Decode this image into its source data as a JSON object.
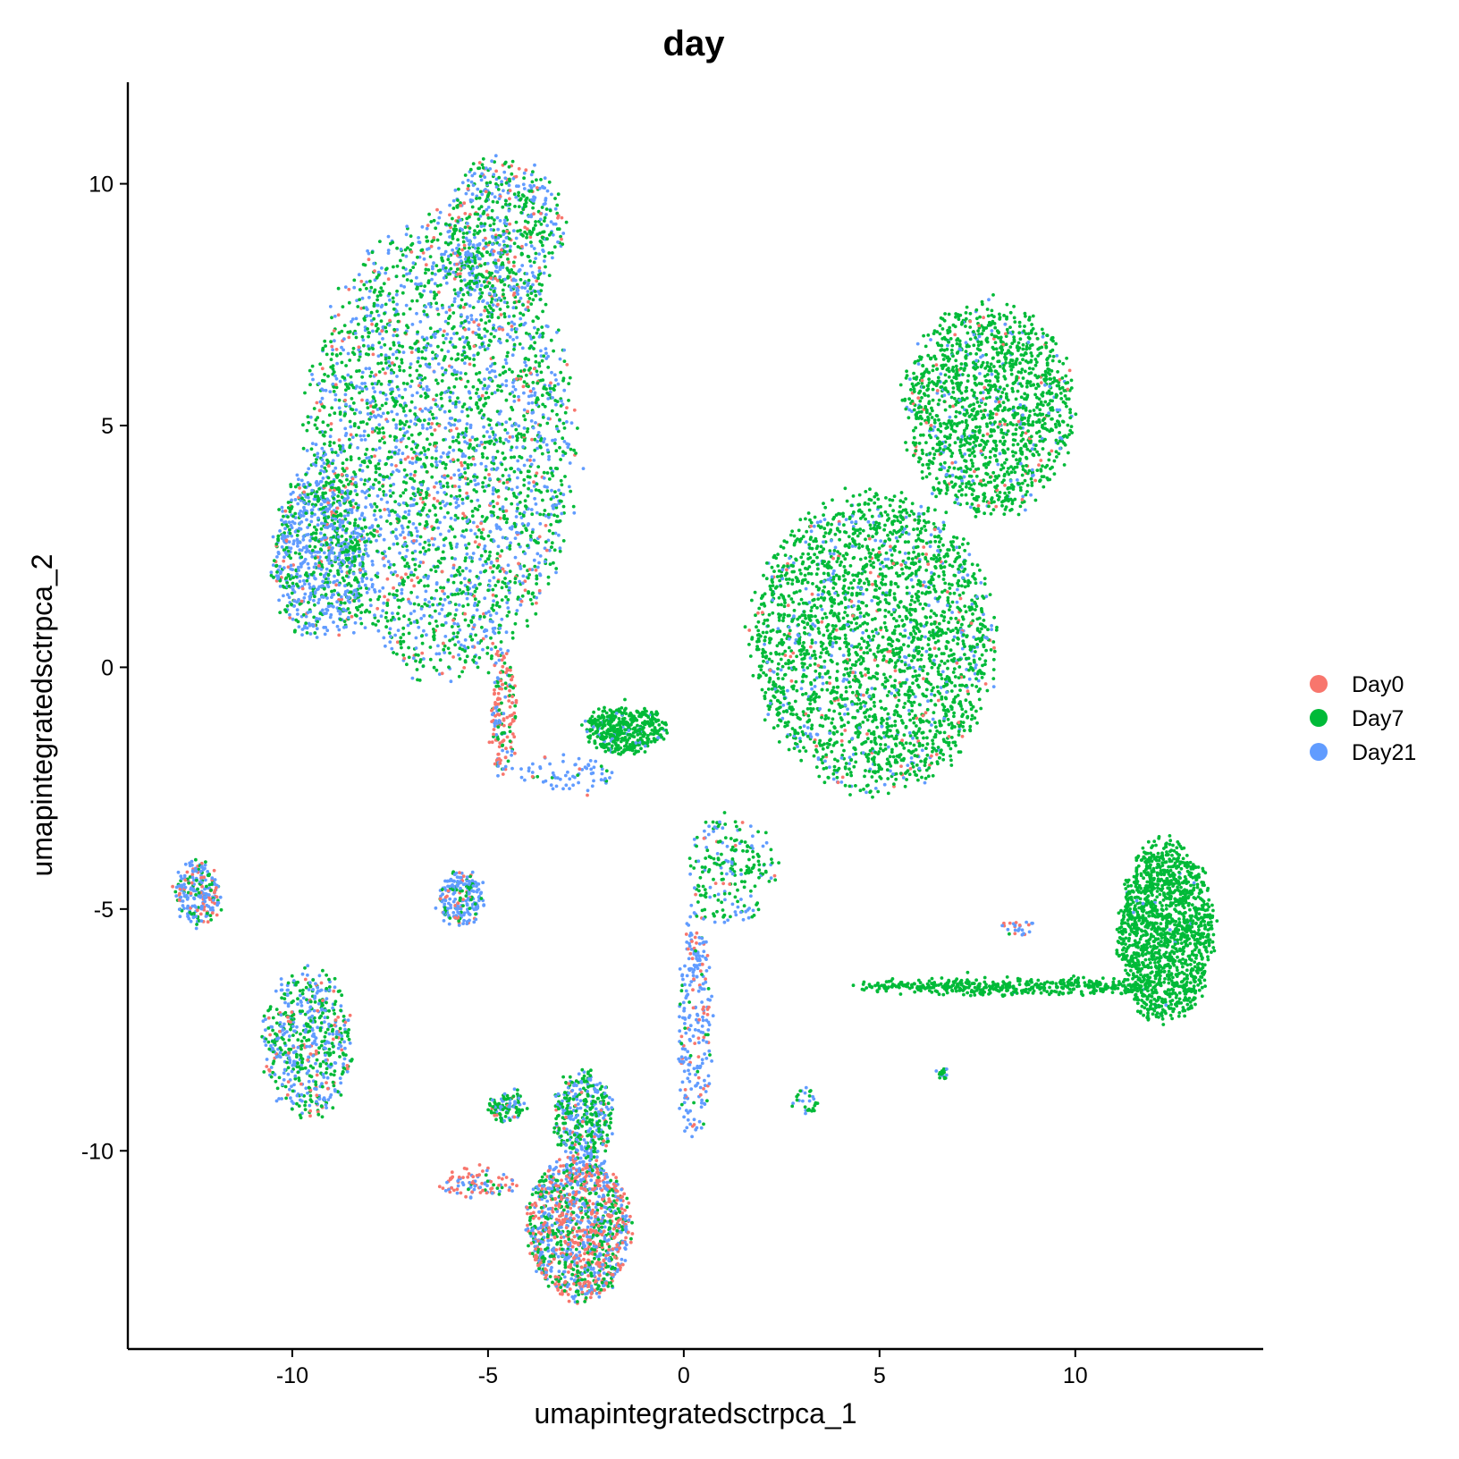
{
  "chart_data": {
    "type": "scatter",
    "title": "day",
    "xlabel": "umapintegratedsctrpca_1",
    "ylabel": "umapintegratedsctrpca_2",
    "xlim": [
      -14.2,
      14.8
    ],
    "ylim": [
      -14.1,
      12.1
    ],
    "xticks": [
      -10,
      -5,
      0,
      5,
      10
    ],
    "yticks": [
      -10,
      -5,
      0,
      5,
      10
    ],
    "xtick_labels": [
      "-10",
      "-5",
      "0",
      "5",
      "10"
    ],
    "ytick_labels": [
      "-10",
      "-5",
      "0",
      "5",
      "10"
    ],
    "grid": false,
    "legend_position": "right",
    "series": [
      {
        "name": "Day0",
        "color": "#F8766D"
      },
      {
        "name": "Day7",
        "color": "#00BA38"
      },
      {
        "name": "Day21",
        "color": "#619CFF"
      }
    ],
    "clusters": [
      {
        "region": "upper-left large cluster",
        "cx": -6.2,
        "cy": 4.5,
        "rx": 3.6,
        "ry": 5.0,
        "n": 3200,
        "mix": [
          0.07,
          0.55,
          0.38
        ]
      },
      {
        "region": "upper-left top lobe",
        "cx": -4.6,
        "cy": 9.0,
        "rx": 1.6,
        "ry": 1.6,
        "n": 600,
        "mix": [
          0.12,
          0.5,
          0.38
        ]
      },
      {
        "region": "upper-left left edge",
        "cx": -9.3,
        "cy": 2.3,
        "rx": 1.3,
        "ry": 1.9,
        "n": 800,
        "mix": [
          0.06,
          0.35,
          0.59
        ]
      },
      {
        "region": "right-middle large cluster",
        "cx": 4.8,
        "cy": 0.5,
        "rx": 3.3,
        "ry": 3.3,
        "n": 2600,
        "mix": [
          0.04,
          0.84,
          0.12
        ]
      },
      {
        "region": "right-upper cluster",
        "cx": 7.8,
        "cy": 5.3,
        "rx": 2.3,
        "ry": 2.3,
        "n": 1500,
        "mix": [
          0.03,
          0.88,
          0.09
        ]
      },
      {
        "region": "far-right cluster",
        "cx": 12.3,
        "cy": -5.5,
        "rx": 1.3,
        "ry": 2.0,
        "n": 1500,
        "mix": [
          0.0,
          0.99,
          0.01
        ]
      },
      {
        "region": "right horizontal streak",
        "cx": 8.3,
        "cy": -6.6,
        "rx": 4.2,
        "ry": 0.14,
        "n": 450,
        "mix": [
          0.0,
          0.99,
          0.01
        ]
      },
      {
        "region": "bottom-center cluster",
        "cx": -2.7,
        "cy": -11.6,
        "rx": 1.4,
        "ry": 1.6,
        "n": 1300,
        "mix": [
          0.36,
          0.3,
          0.34
        ]
      },
      {
        "region": "bottom-center upper lobe",
        "cx": -2.6,
        "cy": -9.3,
        "rx": 0.8,
        "ry": 1.0,
        "n": 400,
        "mix": [
          0.05,
          0.55,
          0.4
        ]
      },
      {
        "region": "left-lower cluster",
        "cx": -9.6,
        "cy": -7.8,
        "rx": 1.2,
        "ry": 1.6,
        "n": 600,
        "mix": [
          0.1,
          0.45,
          0.45
        ]
      },
      {
        "region": "far-left small cluster",
        "cx": -12.4,
        "cy": -4.7,
        "rx": 0.6,
        "ry": 0.7,
        "n": 250,
        "mix": [
          0.28,
          0.17,
          0.55
        ]
      },
      {
        "region": "center small triangle",
        "cx": -1.5,
        "cy": -1.3,
        "rx": 1.1,
        "ry": 0.5,
        "n": 450,
        "mix": [
          0.0,
          0.92,
          0.08
        ]
      },
      {
        "region": "left small cluster",
        "cx": -5.7,
        "cy": -4.8,
        "rx": 0.6,
        "ry": 0.6,
        "n": 220,
        "mix": [
          0.1,
          0.15,
          0.75
        ]
      },
      {
        "region": "left connector",
        "cx": -4.6,
        "cy": -1.0,
        "rx": 0.35,
        "ry": 1.4,
        "n": 180,
        "mix": [
          0.55,
          0.2,
          0.25
        ]
      },
      {
        "region": "center connector",
        "cx": 1.2,
        "cy": -4.2,
        "rx": 1.2,
        "ry": 1.2,
        "n": 220,
        "mix": [
          0.05,
          0.65,
          0.3
        ]
      },
      {
        "region": "center vertical trail",
        "cx": 0.3,
        "cy": -7.5,
        "rx": 0.45,
        "ry": 2.6,
        "n": 260,
        "mix": [
          0.18,
          0.07,
          0.75
        ]
      },
      {
        "region": "lower-left small cluster",
        "cx": -4.5,
        "cy": -9.1,
        "rx": 0.5,
        "ry": 0.3,
        "n": 110,
        "mix": [
          0.05,
          0.6,
          0.35
        ]
      },
      {
        "region": "bottom-left trail",
        "cx": -5.3,
        "cy": -10.7,
        "rx": 1.1,
        "ry": 0.3,
        "n": 100,
        "mix": [
          0.5,
          0.1,
          0.4
        ]
      },
      {
        "region": "center-left trail",
        "cx": -3.0,
        "cy": -2.2,
        "rx": 1.4,
        "ry": 0.4,
        "n": 70,
        "mix": [
          0.1,
          0.1,
          0.8
        ]
      },
      {
        "region": "small blob",
        "cx": 6.6,
        "cy": -8.4,
        "rx": 0.1,
        "ry": 0.1,
        "n": 18,
        "mix": [
          0.0,
          0.8,
          0.2
        ]
      },
      {
        "region": "small streak",
        "cx": 3.1,
        "cy": -9.0,
        "rx": 0.4,
        "ry": 0.3,
        "n": 30,
        "mix": [
          0.0,
          0.55,
          0.45
        ]
      },
      {
        "region": "isolated points",
        "cx": 8.5,
        "cy": -5.4,
        "rx": 0.4,
        "ry": 0.2,
        "n": 25,
        "mix": [
          0.3,
          0.1,
          0.6
        ]
      }
    ]
  }
}
